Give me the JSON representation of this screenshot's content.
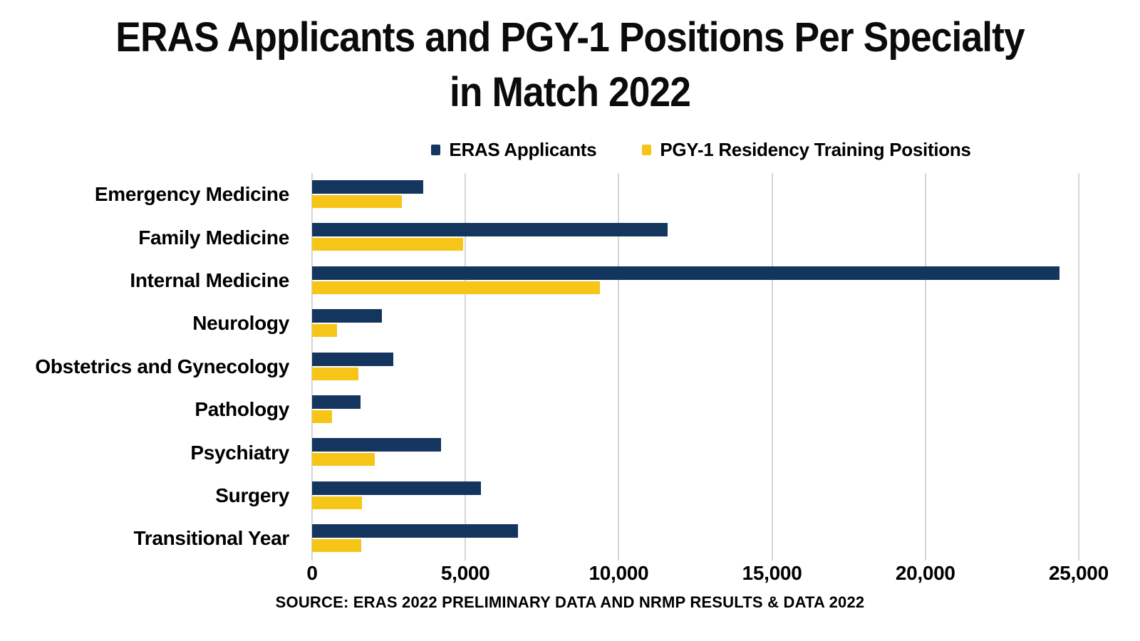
{
  "title": {
    "line1": "ERAS Applicants and PGY-1 Positions Per Specialty",
    "line2": "in Match 2022"
  },
  "source": "SOURCE: ERAS 2022 PRELIMINARY DATA AND NRMP RESULTS & DATA 2022",
  "colors": {
    "navy": "#14355E",
    "yellow": "#F5C518",
    "gridline": "#D6D6D6",
    "background": "#FFFFFF",
    "text": "#000000"
  },
  "chart_data": {
    "type": "bar",
    "orientation": "horizontal",
    "title": "ERAS Applicants and PGY-1 Positions Per Specialty in Match 2022",
    "legend_position": "top",
    "grid": true,
    "categories": [
      "Emergency Medicine",
      "Family Medicine",
      "Internal Medicine",
      "Neurology",
      "Obstetrics and Gynecology",
      "Pathology",
      "Psychiatry",
      "Surgery",
      "Transitional Year"
    ],
    "series": [
      {
        "name": "ERAS Applicants",
        "color": "#14355E",
        "values": [
          3630,
          11600,
          24370,
          2270,
          2660,
          1580,
          4200,
          5500,
          6710
        ]
      },
      {
        "name": "PGY-1 Residency Training Positions",
        "color": "#F5C518",
        "values": [
          2920,
          4920,
          9390,
          820,
          1520,
          650,
          2050,
          1630,
          1600
        ]
      }
    ],
    "x_axis": {
      "ticks": [
        0,
        5000,
        10000,
        15000,
        20000,
        25000
      ],
      "tick_labels": [
        "0",
        "5,000",
        "10,000",
        "15,000",
        "20,000",
        "25,000"
      ],
      "max": 25350
    }
  }
}
